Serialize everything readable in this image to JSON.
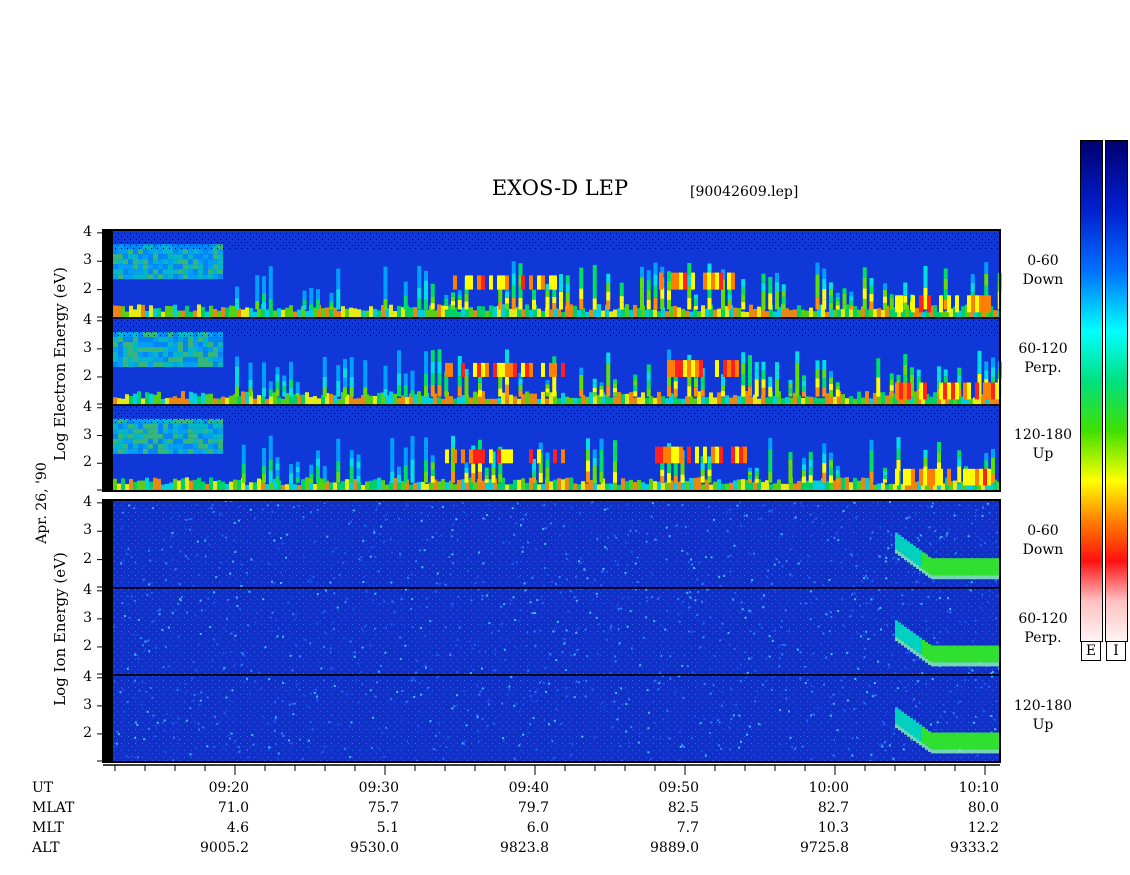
{
  "title": "EXOS-D LEP",
  "filename": "[90042609.lep]",
  "colors": {
    "background_low": "#1038d8",
    "scale": [
      "#fff0f0",
      "#ff1010",
      "#ff9000",
      "#ffff00",
      "#00e000",
      "#00ffff",
      "#0040ff",
      "#000080"
    ]
  },
  "colorbars": [
    {
      "label": "E"
    },
    {
      "label": "I"
    }
  ],
  "left_labels": {
    "electron": "Log  Electron  Energy (eV)",
    "ion": "Log  Ion  Energy (eV)",
    "date": "Apr. 26, '90"
  },
  "panels": [
    {
      "species": "Electron",
      "pitch": "0-60",
      "direction": "Down"
    },
    {
      "species": "Electron",
      "pitch": "60-120",
      "direction": "Perp."
    },
    {
      "species": "Electron",
      "pitch": "120-180",
      "direction": "Up"
    },
    {
      "species": "Ion",
      "pitch": "0-60",
      "direction": "Down"
    },
    {
      "species": "Ion",
      "pitch": "60-120",
      "direction": "Perp."
    },
    {
      "species": "Ion",
      "pitch": "120-180",
      "direction": "Up"
    }
  ],
  "footer": {
    "row_labels": [
      "UT",
      "MLAT",
      "MLT",
      "ALT"
    ],
    "columns": [
      {
        "ut": "09:20",
        "mlat": "71.0",
        "mlt": "4.6",
        "alt": "9005.2"
      },
      {
        "ut": "09:30",
        "mlat": "75.7",
        "mlt": "5.1",
        "alt": "9530.0"
      },
      {
        "ut": "09:40",
        "mlat": "79.7",
        "mlt": "6.0",
        "alt": "9823.8"
      },
      {
        "ut": "09:50",
        "mlat": "82.5",
        "mlt": "7.7",
        "alt": "9889.0"
      },
      {
        "ut": "10:00",
        "mlat": "82.7",
        "mlt": "10.3",
        "alt": "9725.8"
      },
      {
        "ut": "10:10",
        "mlat": "80.0",
        "mlt": "12.2",
        "alt": "9333.2"
      }
    ]
  },
  "chart_data": {
    "type": "heatmap",
    "title": "EXOS-D LEP",
    "xlabel": "UT",
    "ylabel": "Log Energy (eV)",
    "y_ticks": [
      "2",
      "3",
      "4"
    ],
    "x_ticks": [
      "09:20",
      "09:30",
      "09:40",
      "09:50",
      "10:00",
      "10:10"
    ],
    "x_range": [
      "09:12",
      "10:11"
    ],
    "y_range": [
      1.0,
      4.1
    ],
    "electron_features": [
      {
        "desc": "broad energetic band",
        "ut_start": "09:12",
        "ut_end": "09:19",
        "log_e": [
          2.8,
          3.5
        ]
      },
      {
        "desc": "red/orange patches",
        "ut_start": "09:34",
        "ut_end": "09:42",
        "log_e": [
          2.0,
          2.5
        ]
      },
      {
        "desc": "red patches",
        "ut_start": "09:48",
        "ut_end": "09:54",
        "log_e": [
          2.0,
          2.6
        ]
      },
      {
        "desc": "red band",
        "ut_start": "10:04",
        "ut_end": "10:11",
        "log_e": [
          1.2,
          1.8
        ]
      }
    ],
    "ion_features": [
      {
        "desc": "green dispersive band",
        "ut_start": "10:04",
        "ut_end": "10:11",
        "log_e": [
          1.5,
          2.7
        ]
      }
    ]
  }
}
